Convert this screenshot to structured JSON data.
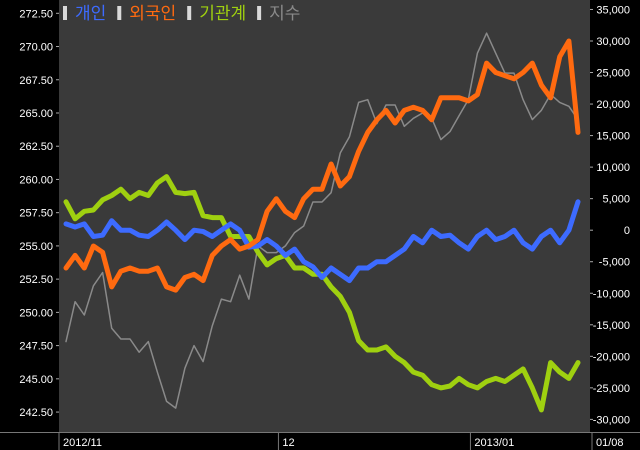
{
  "chart_data": {
    "type": "line",
    "title": "",
    "legend": {
      "placement": "top-left",
      "items": [
        {
          "label": "개인",
          "color": "#3d6bff"
        },
        {
          "label": "외국인",
          "color": "#ff6a10"
        },
        {
          "label": "기관계",
          "color": "#9fd010"
        },
        {
          "label": "지수",
          "color": "#8a8a8a"
        }
      ]
    },
    "grid": false,
    "left_axis": {
      "label": "",
      "ylim": [
        241.0,
        273.5
      ],
      "ticks": [
        "272.50",
        "270.00",
        "267.50",
        "265.00",
        "262.50",
        "260.00",
        "257.50",
        "255.00",
        "252.50",
        "250.00",
        "247.50",
        "245.00",
        "242.50"
      ],
      "tick_values": [
        272.5,
        270.0,
        267.5,
        265.0,
        262.5,
        260.0,
        257.5,
        255.0,
        252.5,
        250.0,
        247.5,
        245.0,
        242.5
      ]
    },
    "right_axis": {
      "label": "",
      "ylim": [
        -32000,
        36500
      ],
      "ticks": [
        "35,000",
        "30,000",
        "25,000",
        "20,000",
        "15,000",
        "10,000",
        "5,000",
        "0",
        "-5,000",
        "-10,000",
        "-15,000",
        "-20,000",
        "-25,000",
        "-30,000"
      ],
      "tick_values": [
        35000,
        30000,
        25000,
        20000,
        15000,
        10000,
        5000,
        0,
        -5000,
        -10000,
        -15000,
        -20000,
        -25000,
        -30000
      ]
    },
    "x_axis": {
      "label": "",
      "n_points": 57,
      "tick_labels": [
        {
          "index": 0,
          "text": "2012/11"
        },
        {
          "index": 24,
          "text": "12"
        },
        {
          "index": 45,
          "text": "2013/01"
        },
        {
          "index": 56,
          "text": "01/08"
        }
      ]
    },
    "series": [
      {
        "name": "개인",
        "axis": "right",
        "color": "#3d6bff",
        "values": [
          1000,
          500,
          1000,
          -1000,
          -800,
          1500,
          0,
          0,
          -800,
          -1000,
          0,
          1300,
          0,
          -1500,
          0,
          -200,
          -1000,
          0,
          1000,
          0,
          -2700,
          -2500,
          -1500,
          -2500,
          -4000,
          -3000,
          -5000,
          -5800,
          -7500,
          -6000,
          -7000,
          -8000,
          -6000,
          -6000,
          -5000,
          -5000,
          -4000,
          -3000,
          -1000,
          -2000,
          0,
          -1000,
          -800,
          -2000,
          -3000,
          -1000,
          0,
          -1500,
          -1000,
          0,
          -2000,
          -3000,
          -1000,
          0,
          -2000,
          0,
          4500
        ]
      },
      {
        "name": "외국인",
        "axis": "right",
        "color": "#ff6a10",
        "values": [
          -6000,
          -4000,
          -6000,
          -2500,
          -3500,
          -9000,
          -6500,
          -6000,
          -6500,
          -6500,
          -6000,
          -9000,
          -9500,
          -7500,
          -7000,
          -8000,
          -4000,
          -2500,
          -1500,
          -3000,
          -2500,
          -1500,
          3000,
          5000,
          3000,
          2000,
          5000,
          6500,
          6500,
          10500,
          7000,
          8500,
          12500,
          15500,
          17500,
          19000,
          17000,
          19000,
          19500,
          19000,
          17500,
          21000,
          21000,
          21000,
          20500,
          21500,
          26500,
          25000,
          24500,
          24000,
          25000,
          26500,
          23000,
          21000,
          27500,
          30000,
          15500
        ]
      },
      {
        "name": "기관계",
        "axis": "right",
        "color": "#9fd010",
        "values": [
          4500,
          1800,
          3000,
          3200,
          4800,
          5500,
          6500,
          5000,
          6000,
          5500,
          7500,
          8500,
          6000,
          5800,
          6000,
          2300,
          2000,
          2000,
          -1000,
          -1000,
          -1000,
          -3500,
          -5500,
          -4500,
          -4000,
          -6000,
          -6000,
          -7000,
          -7000,
          -9000,
          -10500,
          -13000,
          -17500,
          -19000,
          -19000,
          -18500,
          -20000,
          -21000,
          -22500,
          -23000,
          -24500,
          -25000,
          -24700,
          -23500,
          -24500,
          -25000,
          -24000,
          -23500,
          -24000,
          -23000,
          -22000,
          -25000,
          -28500,
          -21000,
          -22500,
          -23500,
          -21000
        ]
      },
      {
        "name": "지수",
        "axis": "left",
        "color": "#8a8a8a",
        "values": [
          247.8,
          250.8,
          249.8,
          252.0,
          253.0,
          248.8,
          248.0,
          248.0,
          247.0,
          247.8,
          245.5,
          243.3,
          242.8,
          245.8,
          247.5,
          246.3,
          249.0,
          251.0,
          250.8,
          252.8,
          251.0,
          255.0,
          254.5,
          254.5,
          255.0,
          256.0,
          256.5,
          258.3,
          258.3,
          259.0,
          262.0,
          263.2,
          265.8,
          266.0,
          264.2,
          265.6,
          265.6,
          264.0,
          264.6,
          265.0,
          264.6,
          263.0,
          263.6,
          264.8,
          266.0,
          269.5,
          271.0,
          269.5,
          268.0,
          268.0,
          266.0,
          264.5,
          265.2,
          266.4,
          265.8,
          265.5,
          264.5
        ]
      }
    ]
  }
}
